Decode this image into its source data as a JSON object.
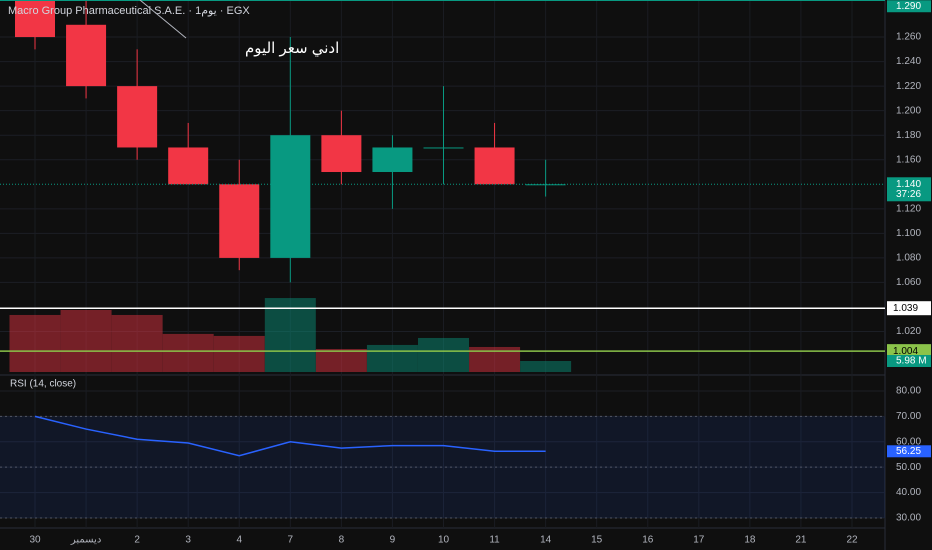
{
  "chart_data": {
    "type": "candlestick",
    "title": "Macro Group Pharmaceutical S.A.E. · 1يوم · EGX",
    "annotation": "ادني سعر اليوم",
    "categories": [
      "30",
      "ديسمبر",
      "2",
      "3",
      "4",
      "7",
      "8",
      "9",
      "10",
      "11",
      "14",
      "15",
      "16",
      "17",
      "18",
      "21",
      "22"
    ],
    "open": [
      1.29,
      1.27,
      1.22,
      1.17,
      1.14,
      1.08,
      1.18,
      1.15,
      1.17,
      1.17,
      1.14,
      null,
      null,
      null,
      null,
      null,
      null
    ],
    "high": [
      1.29,
      1.29,
      1.25,
      1.19,
      1.16,
      1.26,
      1.2,
      1.18,
      1.22,
      1.19,
      1.16,
      null,
      null,
      null,
      null,
      null,
      null
    ],
    "low": [
      1.25,
      1.21,
      1.16,
      1.14,
      1.07,
      1.06,
      1.14,
      1.12,
      1.14,
      1.14,
      1.13,
      null,
      null,
      null,
      null,
      null,
      null
    ],
    "close": [
      1.26,
      1.22,
      1.17,
      1.14,
      1.08,
      1.18,
      1.15,
      1.17,
      1.17,
      1.14,
      1.14,
      null,
      null,
      null,
      null,
      null,
      null
    ],
    "up_color": "#089981",
    "down_color": "#f23645",
    "ylim": [
      0.987,
      1.2902
    ],
    "yticks": [
      {
        "value": 1.02,
        "label": "1.020"
      },
      {
        "value": 1.06,
        "label": "1.060"
      },
      {
        "value": 1.08,
        "label": "1.080"
      },
      {
        "value": 1.1,
        "label": "1.100"
      },
      {
        "value": 1.12,
        "label": "1.120"
      },
      {
        "value": 1.16,
        "label": "1.160"
      },
      {
        "value": 1.18,
        "label": "1.180"
      },
      {
        "value": 1.2,
        "label": "1.200"
      },
      {
        "value": 1.22,
        "label": "1.220"
      },
      {
        "value": 1.24,
        "label": "1.240"
      },
      {
        "value": 1.26,
        "label": "1.260"
      }
    ],
    "top_label": {
      "value": 1.29,
      "label": "1.290"
    },
    "last_price": {
      "value": 1.14,
      "label": "1.140",
      "countdown": "37:26"
    },
    "hlines": [
      {
        "value": 1.039,
        "label": "1.039",
        "color": "#ffffff"
      },
      {
        "value": 1.004,
        "label": "1.004",
        "color": "#8bc34a"
      }
    ],
    "volume": {
      "values": [
        31.0,
        33.7,
        31.0,
        20.7,
        19.6,
        40.2,
        12.5,
        14.7,
        18.5,
        13.6,
        5.98,
        null,
        null,
        null,
        null,
        null,
        null
      ],
      "ylim": [
        0,
        50
      ],
      "last_label": {
        "value": 5.98,
        "label": "5.98 M"
      }
    },
    "rsi": {
      "title": "RSI (14, close)",
      "values": [
        70,
        65,
        61,
        59.5,
        54.5,
        60,
        57.5,
        58.5,
        58.5,
        56.25,
        56.25,
        null,
        null,
        null,
        null,
        null,
        null
      ],
      "color": "#2962ff",
      "ylim": [
        29.2,
        85.1
      ],
      "yticks": [
        {
          "value": 30,
          "label": "30.00"
        },
        {
          "value": 40,
          "label": "40.00"
        },
        {
          "value": 50,
          "label": "50.00"
        },
        {
          "value": 60,
          "label": "60.00"
        },
        {
          "value": 70,
          "label": "70.00"
        },
        {
          "value": 80,
          "label": "80.00"
        }
      ],
      "band": [
        30,
        70
      ],
      "midline": 50
    }
  }
}
